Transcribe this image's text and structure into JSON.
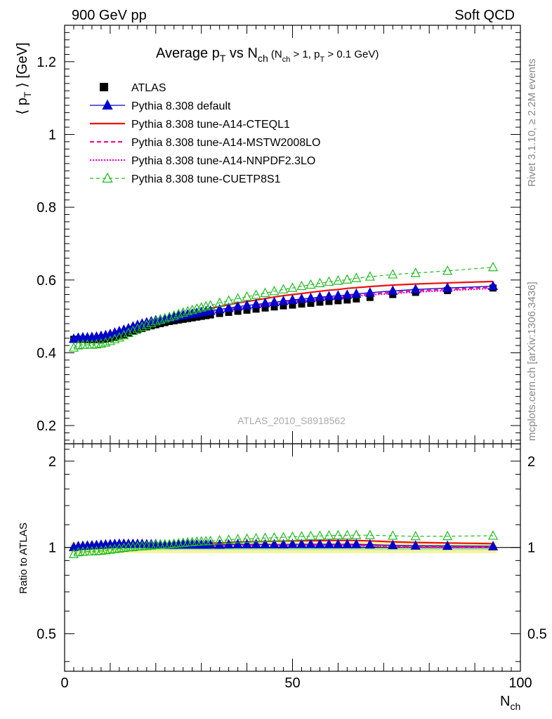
{
  "header": {
    "left": "900 GeV pp",
    "right": "Soft QCD"
  },
  "title": {
    "main": "Average p",
    "sub1": "T",
    "mid": " vs N",
    "sub2": "ch",
    "cond_a": " (N",
    "cond_sub1": "ch",
    "cond_b": " > 1, p",
    "cond_sub2": "T",
    "cond_c": " > 0.1 GeV)"
  },
  "ylabel_top": {
    "pre": "⟨ p",
    "sub": "T",
    "post": " ⟩ [GeV]"
  },
  "ylabel_bottom": "Ratio to ATLAS",
  "xlabel": {
    "main": "N",
    "sub": "ch"
  },
  "analysis_label": "ATLAS_2010_S8918562",
  "side_text": {
    "rivet": "Rivet 3.1.10, ≥ 2.2M events",
    "mcplots": "mcplots.cern.ch [arXiv:1306.3436]"
  },
  "legend": [
    "ATLAS",
    "Pythia 8.308 default",
    "Pythia 8.308 tune-A14-CTEQL1",
    "Pythia 8.308 tune-A14-MSTW2008LO",
    "Pythia 8.308 tune-A14-NNPDF2.3LO",
    "Pythia 8.308 tune-CUETP8S1"
  ],
  "colors": {
    "atlas": "#000000",
    "default": "#0000cc",
    "cteql1": "#ee1111",
    "mstw": "#ee1188",
    "nnpdf": "#ff00cc",
    "cuetp8s1": "#22bb22",
    "band_inner": "#a8e8a8",
    "band_outer": "#f4f4a0"
  },
  "chart_data": {
    "type": "line",
    "top_panel": {
      "xlim": [
        0,
        100
      ],
      "ylim": [
        0.15,
        1.3
      ],
      "yticks": [
        "0.2",
        "0.4",
        "0.6",
        "0.8",
        "1",
        "1.2"
      ],
      "xticks": [
        "0",
        "50",
        "100"
      ],
      "x": [
        2,
        3,
        4,
        5,
        6,
        7,
        8,
        9,
        10,
        11,
        12,
        13,
        14,
        15,
        16,
        17,
        18,
        19,
        20,
        21,
        22,
        23,
        24,
        25,
        26,
        27,
        28,
        29,
        30,
        31,
        32,
        34,
        36,
        38,
        40,
        42,
        44,
        46,
        48,
        50,
        52,
        54,
        56,
        58,
        60,
        62,
        64,
        67,
        72,
        77,
        84,
        94
      ],
      "atlas": [
        0.437,
        0.437,
        0.437,
        0.436,
        0.436,
        0.436,
        0.437,
        0.438,
        0.44,
        0.443,
        0.446,
        0.45,
        0.454,
        0.459,
        0.463,
        0.467,
        0.471,
        0.474,
        0.477,
        0.48,
        0.483,
        0.486,
        0.488,
        0.49,
        0.492,
        0.494,
        0.496,
        0.498,
        0.5,
        0.502,
        0.504,
        0.508,
        0.511,
        0.514,
        0.517,
        0.52,
        0.523,
        0.526,
        0.529,
        0.531,
        0.534,
        0.536,
        0.539,
        0.541,
        0.543,
        0.545,
        0.548,
        0.552,
        0.56,
        0.566,
        0.571,
        0.578
      ],
      "series": [
        {
          "name": "Pythia 8.308 default",
          "values": [
            0.438,
            0.441,
            0.442,
            0.442,
            0.443,
            0.444,
            0.446,
            0.448,
            0.451,
            0.455,
            0.459,
            0.463,
            0.467,
            0.472,
            0.476,
            0.48,
            0.483,
            0.486,
            0.489,
            0.491,
            0.494,
            0.496,
            0.498,
            0.501,
            0.503,
            0.505,
            0.507,
            0.509,
            0.511,
            0.513,
            0.515,
            0.519,
            0.523,
            0.527,
            0.53,
            0.533,
            0.536,
            0.539,
            0.542,
            0.545,
            0.548,
            0.55,
            0.553,
            0.555,
            0.557,
            0.559,
            0.562,
            0.565,
            0.57,
            0.574,
            0.578,
            0.583
          ]
        },
        {
          "name": "Pythia 8.308 tune-A14-CTEQL1",
          "values": [
            0.431,
            0.434,
            0.435,
            0.435,
            0.435,
            0.436,
            0.438,
            0.441,
            0.444,
            0.448,
            0.452,
            0.457,
            0.462,
            0.467,
            0.472,
            0.476,
            0.48,
            0.484,
            0.487,
            0.49,
            0.493,
            0.496,
            0.499,
            0.502,
            0.505,
            0.508,
            0.511,
            0.513,
            0.516,
            0.519,
            0.522,
            0.527,
            0.532,
            0.537,
            0.541,
            0.545,
            0.549,
            0.553,
            0.557,
            0.56,
            0.563,
            0.566,
            0.569,
            0.572,
            0.574,
            0.577,
            0.579,
            0.582,
            0.586,
            0.589,
            0.592,
            0.596
          ]
        },
        {
          "name": "Pythia 8.308 tune-A14-MSTW2008LO",
          "values": [
            0.43,
            0.432,
            0.433,
            0.433,
            0.433,
            0.434,
            0.436,
            0.438,
            0.441,
            0.445,
            0.449,
            0.454,
            0.458,
            0.463,
            0.467,
            0.471,
            0.475,
            0.478,
            0.481,
            0.484,
            0.487,
            0.49,
            0.493,
            0.495,
            0.498,
            0.5,
            0.502,
            0.504,
            0.507,
            0.509,
            0.511,
            0.515,
            0.519,
            0.523,
            0.526,
            0.53,
            0.533,
            0.536,
            0.539,
            0.542,
            0.545,
            0.547,
            0.55,
            0.552,
            0.554,
            0.556,
            0.558,
            0.561,
            0.566,
            0.57,
            0.574,
            0.58
          ]
        },
        {
          "name": "Pythia 8.308 tune-A14-NNPDF2.3LO",
          "values": [
            0.431,
            0.433,
            0.434,
            0.434,
            0.434,
            0.435,
            0.437,
            0.439,
            0.442,
            0.446,
            0.45,
            0.455,
            0.459,
            0.464,
            0.468,
            0.472,
            0.476,
            0.479,
            0.482,
            0.485,
            0.488,
            0.491,
            0.493,
            0.496,
            0.498,
            0.5,
            0.503,
            0.505,
            0.507,
            0.509,
            0.511,
            0.515,
            0.519,
            0.522,
            0.526,
            0.529,
            0.532,
            0.535,
            0.538,
            0.541,
            0.543,
            0.546,
            0.548,
            0.55,
            0.552,
            0.554,
            0.556,
            0.559,
            0.563,
            0.567,
            0.571,
            0.577
          ]
        },
        {
          "name": "Pythia 8.308 tune-CUETP8S1",
          "values": [
            0.414,
            0.42,
            0.422,
            0.422,
            0.422,
            0.423,
            0.425,
            0.428,
            0.432,
            0.437,
            0.442,
            0.448,
            0.454,
            0.46,
            0.466,
            0.471,
            0.476,
            0.481,
            0.486,
            0.49,
            0.494,
            0.498,
            0.502,
            0.506,
            0.51,
            0.514,
            0.517,
            0.521,
            0.524,
            0.527,
            0.53,
            0.537,
            0.543,
            0.549,
            0.554,
            0.559,
            0.564,
            0.569,
            0.574,
            0.578,
            0.583,
            0.587,
            0.591,
            0.595,
            0.598,
            0.601,
            0.605,
            0.609,
            0.615,
            0.619,
            0.625,
            0.635
          ]
        }
      ]
    },
    "ratio_panel": {
      "ylim": [
        0.37,
        2.3
      ],
      "yscale": "log",
      "yticks": [
        "0.5",
        "1",
        "2"
      ],
      "band_inner": [
        0.98,
        1.02
      ],
      "band_outer": [
        0.955,
        1.045
      ]
    }
  }
}
